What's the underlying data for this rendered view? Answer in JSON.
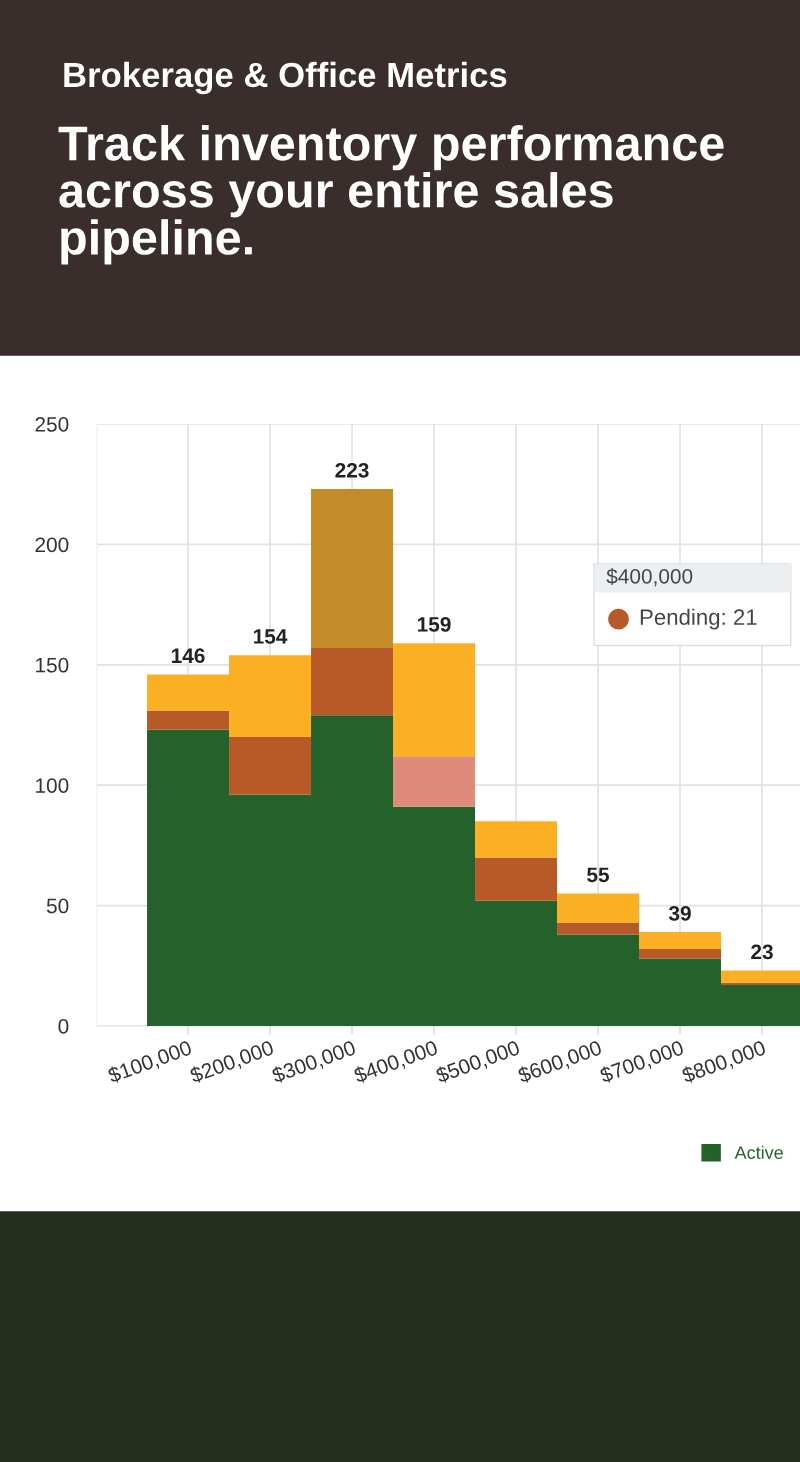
{
  "chart_data": {
    "type": "bar",
    "stacked": true,
    "subtitle": "Brokerage & Office Metrics",
    "title": "Track inventory performance across your entire sales pipeline.",
    "categories": [
      "$100,000",
      "$200,000",
      "$300,000",
      "$400,000",
      "$500,000",
      "$600,000",
      "$700,000",
      "$800,000"
    ],
    "series": [
      {
        "name": "Active",
        "color": "#25612a",
        "values": [
          123,
          96,
          129,
          91,
          52,
          38,
          28,
          17
        ]
      },
      {
        "color": "#b85a27",
        "colors": [
          "#b85a27",
          "#b85a27",
          "#b85a27",
          "#e08a7a",
          "#b85a27",
          "#b85a27",
          "#b85a27",
          "#b85a27"
        ],
        "values": [
          8,
          24,
          28,
          21,
          18,
          5,
          4,
          1
        ]
      },
      {
        "color": "#fbaf23",
        "colors": [
          "#fbaf23",
          "#fbaf23",
          "#c48c28",
          "#fbaf23",
          "#fbaf23",
          "#fbaf23",
          "#fbaf23",
          "#fbaf23"
        ],
        "values": [
          15,
          34,
          66,
          47,
          15,
          12,
          7,
          5
        ]
      }
    ],
    "totals": [
      "146",
      "154",
      "223",
      "159",
      null,
      "55",
      "39",
      "23"
    ],
    "annotations": [
      "$400,000",
      "Pending: 21"
    ],
    "ylim": [
      0,
      250
    ],
    "yticks": [
      0,
      50,
      100,
      150,
      200,
      250
    ],
    "grid": true,
    "legend": "bottom right"
  }
}
